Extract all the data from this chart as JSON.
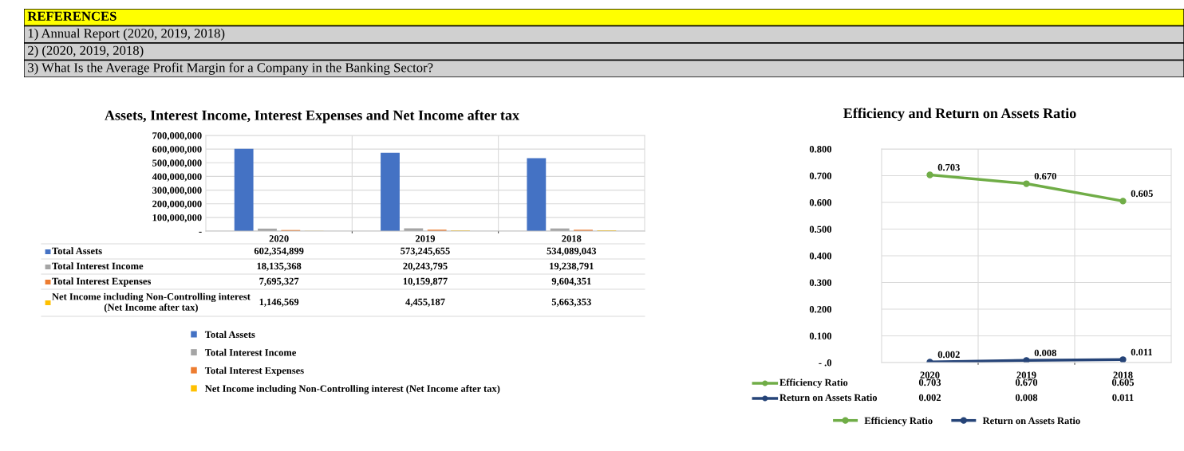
{
  "chart_data": [
    {
      "type": "other",
      "title": "REFERENCES",
      "annotations": [
        "1) Annual Report (2020, 2019, 2018)",
        "2) (2020, 2019, 2018)",
        "3) What Is the Average Profit Margin for a Company in the Banking Sector?"
      ]
    },
    {
      "type": "bar",
      "title": "Assets, Interest Income, Interest Expenses and Net Income after tax",
      "categories": [
        "2020",
        "2019",
        "2018"
      ],
      "series": [
        {
          "name": "Total Assets",
          "color": "#4472c4",
          "values": [
            602354899,
            573245655,
            534089043
          ],
          "value_labels": [
            "602,354,899",
            "573,245,655",
            "534,089,043"
          ]
        },
        {
          "name": "Total Interest Income",
          "color": "#a5a5a5",
          "values": [
            18135368,
            20243795,
            19238791
          ],
          "value_labels": [
            "18,135,368",
            "20,243,795",
            "19,238,791"
          ]
        },
        {
          "name": "Total Interest Expenses",
          "color": "#ed7d31",
          "values": [
            7695327,
            10159877,
            9604351
          ],
          "value_labels": [
            "7,695,327",
            "10,159,877",
            "9,604,351"
          ]
        },
        {
          "name": "Net Income including Non-Controlling interest (Net Income after tax)",
          "color": "#ffc000",
          "values": [
            1146569,
            4455187,
            5663353
          ],
          "value_labels": [
            "1,146,569",
            "4,455,187",
            "5,663,353"
          ]
        }
      ],
      "ylim": [
        0,
        700000000
      ],
      "yticks": [
        {
          "value": 0,
          "label": "-"
        },
        {
          "value": 100000000,
          "label": "100,000,000"
        },
        {
          "value": 200000000,
          "label": "200,000,000"
        },
        {
          "value": 300000000,
          "label": "300,000,000"
        },
        {
          "value": 400000000,
          "label": "400,000,000"
        },
        {
          "value": 500000000,
          "label": "500,000,000"
        },
        {
          "value": 600000000,
          "label": "600,000,000"
        },
        {
          "value": 700000000,
          "label": "700,000,000"
        }
      ],
      "grid": true,
      "legend": "bottom"
    },
    {
      "type": "line",
      "title": "Efficiency and Return on Assets Ratio",
      "categories": [
        "2020",
        "2019",
        "2018"
      ],
      "series": [
        {
          "name": "Efficiency Ratio",
          "color": "#70ad47",
          "values": [
            0.703,
            0.67,
            0.605
          ],
          "value_labels": [
            "0.703",
            "0.670",
            "0.605"
          ]
        },
        {
          "name": "Return on Assets Ratio",
          "color": "#264478",
          "values": [
            0.002,
            0.008,
            0.011
          ],
          "value_labels": [
            "0.002",
            "0.008",
            "0.011"
          ]
        }
      ],
      "ylim": [
        0,
        0.8
      ],
      "yticks": [
        {
          "value": 0,
          "label": "- .0"
        },
        {
          "value": 0.1,
          "label": "0.100"
        },
        {
          "value": 0.2,
          "label": "0.200"
        },
        {
          "value": 0.3,
          "label": "0.300"
        },
        {
          "value": 0.4,
          "label": "0.400"
        },
        {
          "value": 0.5,
          "label": "0.500"
        },
        {
          "value": 0.6,
          "label": "0.600"
        },
        {
          "value": 0.7,
          "label": "0.700"
        },
        {
          "value": 0.8,
          "label": "0.800"
        }
      ],
      "grid": true,
      "legend": "bottom",
      "marker": "circle",
      "line_style": "solid"
    }
  ]
}
